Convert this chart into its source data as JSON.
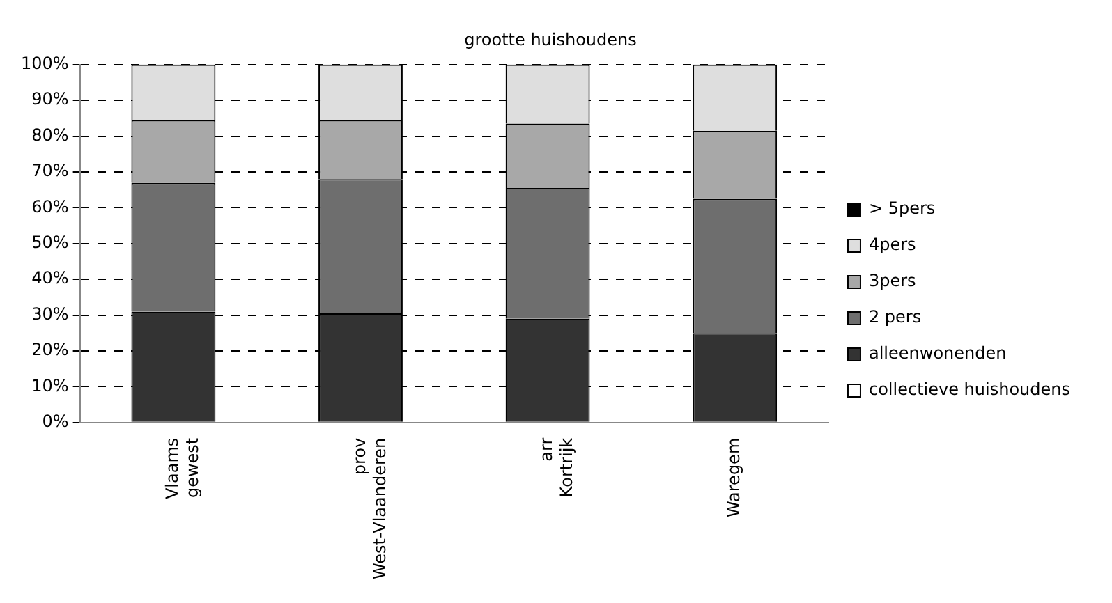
{
  "chart_data": {
    "type": "bar",
    "title": "grootte huishoudens",
    "stacked": true,
    "categories": [
      "Vlaams gewest",
      "prov West-Vlaanderen",
      "arr Kortrijk",
      "Waregem"
    ],
    "series": [
      {
        "name": "collectieve huishoudens",
        "color": "#ffffff",
        "values": [
          0,
          0,
          0,
          0
        ]
      },
      {
        "name": "alleenwonenden",
        "color": "#333333",
        "values": [
          31,
          30.5,
          29,
          25
        ]
      },
      {
        "name": "2 pers",
        "color": "#6e6e6e",
        "values": [
          36,
          37.5,
          36.5,
          37.5
        ]
      },
      {
        "name": "3pers",
        "color": "#a8a8a8",
        "values": [
          17.5,
          16.5,
          18,
          19
        ]
      },
      {
        "name": "4pers",
        "color": "#dedede",
        "values": [
          15.5,
          15.5,
          16.5,
          18.5
        ]
      },
      {
        "name": "> 5pers",
        "color": "#000000",
        "values": [
          0,
          0,
          0,
          0
        ]
      }
    ],
    "ylim": [
      0,
      100
    ],
    "yticks": [
      {
        "value": 0,
        "label": "0%"
      },
      {
        "value": 10,
        "label": "10%"
      },
      {
        "value": 20,
        "label": "20%"
      },
      {
        "value": 30,
        "label": "30%"
      },
      {
        "value": 40,
        "label": "40%"
      },
      {
        "value": 50,
        "label": "50%"
      },
      {
        "value": 60,
        "label": "60%"
      },
      {
        "value": 70,
        "label": "70%"
      },
      {
        "value": 80,
        "label": "80%"
      },
      {
        "value": 90,
        "label": "90%"
      },
      {
        "value": 100,
        "label": "100%"
      }
    ],
    "grid": "y",
    "legend": "right"
  }
}
